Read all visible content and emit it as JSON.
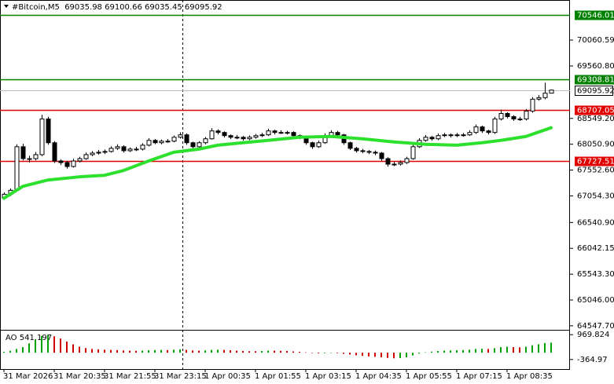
{
  "chart_data": {
    "type": "candlestick",
    "title": "#Bitcoin,M5  69035.98 69100.66 69035.45 69095.92",
    "categories": [
      "31 Mar 2026",
      null,
      null,
      null,
      null,
      null,
      null,
      null,
      "31 Mar 20:35",
      null,
      null,
      null,
      null,
      null,
      null,
      null,
      "31 Mar 21:55",
      null,
      null,
      null,
      null,
      null,
      null,
      null,
      "31 Mar 23:15",
      null,
      null,
      null,
      null,
      null,
      null,
      null,
      "1 Apr 00:35",
      null,
      null,
      null,
      null,
      null,
      null,
      null,
      "1 Apr 01:55",
      null,
      null,
      null,
      null,
      null,
      null,
      null,
      "1 Apr 03:15",
      null,
      null,
      null,
      null,
      null,
      null,
      null,
      "1 Apr 04:35",
      null,
      null,
      null,
      null,
      null,
      null,
      null,
      "1 Apr 05:55",
      null,
      null,
      null,
      null,
      null,
      null,
      null,
      "1 Apr 07:15",
      null,
      null,
      null,
      null,
      null,
      null,
      null,
      "1 Apr 08:35",
      null,
      null,
      null,
      null,
      null,
      null,
      null
    ],
    "candles": [
      [
        67009,
        67120,
        66980,
        67086
      ],
      [
        67086,
        67200,
        67050,
        67162
      ],
      [
        67162,
        68050,
        67140,
        68003
      ],
      [
        68003,
        68060,
        67740,
        67773
      ],
      [
        67773,
        67830,
        67700,
        67773
      ],
      [
        67773,
        67900,
        67740,
        67850
      ],
      [
        67850,
        68620,
        67820,
        68538
      ],
      [
        68538,
        68580,
        68040,
        68080
      ],
      [
        68080,
        68110,
        67690,
        67728
      ],
      [
        67728,
        67760,
        67650,
        67697
      ],
      [
        67697,
        67730,
        67580,
        67621
      ],
      [
        67621,
        67770,
        67600,
        67728
      ],
      [
        67728,
        67810,
        67700,
        67773
      ],
      [
        67773,
        67890,
        67750,
        67850
      ],
      [
        67850,
        67920,
        67820,
        67880
      ],
      [
        67880,
        67940,
        67850,
        67896
      ],
      [
        67896,
        67950,
        67860,
        67911
      ],
      [
        67911,
        68010,
        67890,
        67972
      ],
      [
        67972,
        68050,
        67940,
        68003
      ],
      [
        68003,
        68030,
        67890,
        67926
      ],
      [
        67926,
        67990,
        67900,
        67957
      ],
      [
        67957,
        68000,
        67920,
        67957
      ],
      [
        67957,
        68070,
        67930,
        68033
      ],
      [
        68033,
        68170,
        68010,
        68125
      ],
      [
        68125,
        68150,
        68050,
        68080
      ],
      [
        68080,
        68140,
        68050,
        68110
      ],
      [
        68110,
        68150,
        68080,
        68110
      ],
      [
        68110,
        68220,
        68090,
        68186
      ],
      [
        68186,
        68280,
        68160,
        68232
      ],
      [
        68232,
        68260,
        68040,
        68080
      ],
      [
        68080,
        68100,
        67970,
        68003
      ],
      [
        68003,
        68110,
        67980,
        68080
      ],
      [
        68080,
        68190,
        68050,
        68156
      ],
      [
        68156,
        68360,
        68140,
        68308
      ],
      [
        68308,
        68340,
        68240,
        68278
      ],
      [
        68278,
        68300,
        68180,
        68217
      ],
      [
        68217,
        68240,
        68150,
        68186
      ],
      [
        68186,
        68230,
        68150,
        68186
      ],
      [
        68186,
        68210,
        68120,
        68156
      ],
      [
        68156,
        68220,
        68130,
        68186
      ],
      [
        68186,
        68250,
        68160,
        68217
      ],
      [
        68217,
        68270,
        68190,
        68232
      ],
      [
        68232,
        68350,
        68210,
        68308
      ],
      [
        68308,
        68330,
        68240,
        68278
      ],
      [
        68278,
        68320,
        68250,
        68278
      ],
      [
        68278,
        68310,
        68240,
        68278
      ],
      [
        68278,
        68300,
        68190,
        68217
      ],
      [
        68217,
        68240,
        68150,
        68186
      ],
      [
        68186,
        68210,
        68040,
        68080
      ],
      [
        68080,
        68100,
        67960,
        68003
      ],
      [
        68003,
        68120,
        67980,
        68080
      ],
      [
        68080,
        68260,
        68060,
        68217
      ],
      [
        68217,
        68320,
        68190,
        68278
      ],
      [
        68278,
        68310,
        68200,
        68232
      ],
      [
        68232,
        68250,
        68040,
        68080
      ],
      [
        68080,
        68100,
        67940,
        67972
      ],
      [
        67972,
        68000,
        67890,
        67926
      ],
      [
        67926,
        67960,
        67880,
        67911
      ],
      [
        67911,
        67940,
        67860,
        67896
      ],
      [
        67896,
        67930,
        67840,
        67880
      ],
      [
        67880,
        67900,
        67730,
        67773
      ],
      [
        67773,
        67800,
        67620,
        67667
      ],
      [
        67667,
        67710,
        67630,
        67667
      ],
      [
        67667,
        67740,
        67640,
        67697
      ],
      [
        67697,
        67810,
        67670,
        67773
      ],
      [
        67773,
        68050,
        67750,
        68003
      ],
      [
        68003,
        68170,
        67980,
        68125
      ],
      [
        68125,
        68230,
        68100,
        68186
      ],
      [
        68186,
        68210,
        68120,
        68156
      ],
      [
        68156,
        68260,
        68130,
        68217
      ],
      [
        68217,
        68270,
        68190,
        68232
      ],
      [
        68232,
        68260,
        68180,
        68217
      ],
      [
        68217,
        68270,
        68190,
        68232
      ],
      [
        68232,
        68270,
        68200,
        68232
      ],
      [
        68232,
        68320,
        68210,
        68278
      ],
      [
        68278,
        68430,
        68250,
        68385
      ],
      [
        68385,
        68410,
        68270,
        68308
      ],
      [
        68308,
        68330,
        68240,
        68278
      ],
      [
        68278,
        68580,
        68250,
        68538
      ],
      [
        68538,
        68720,
        68510,
        68645
      ],
      [
        68645,
        68670,
        68550,
        68584
      ],
      [
        68584,
        68610,
        68500,
        68538
      ],
      [
        68538,
        68580,
        68500,
        68538
      ],
      [
        68538,
        68730,
        68510,
        68691
      ],
      [
        68691,
        68960,
        68660,
        68920
      ],
      [
        68920,
        69000,
        68890,
        68950
      ],
      [
        68950,
        69240,
        68920,
        69035.98
      ],
      [
        69035.98,
        69100.66,
        69035.45,
        69095.92
      ]
    ],
    "up_color": "#ffffff",
    "down_color": "#000000",
    "outline_color": "#000000",
    "ylim": [
      64470,
      70834
    ],
    "yticks": [
      70060.59,
      {
        "value": 69560.8,
        "label": "69560.80"
      },
      {
        "value": 68549.2,
        "label": "68549.20"
      },
      {
        "value": 68050.9,
        "label": "68050.90"
      },
      {
        "value": 67552.6,
        "label": "67552.60"
      },
      {
        "value": 67054.3,
        "label": "67054.30"
      },
      {
        "value": 66540.9,
        "label": "66540.90"
      },
      66042.15,
      {
        "value": 65543.3,
        "label": "65543.30"
      },
      {
        "value": 65046,
        "label": "65046.00"
      },
      {
        "value": 64547.7,
        "label": "64547.70"
      }
    ],
    "levels": [
      {
        "value": 70546.01,
        "color": "#008000"
      },
      {
        "value": 69308.81,
        "color": "#008000"
      },
      {
        "value": 68707.05,
        "color": "#e00000"
      },
      {
        "value": 67727.51,
        "color": "#e00000"
      }
    ],
    "current": {
      "value": 69095.92,
      "color": "#c0c0c0"
    },
    "ma": {
      "color": "#2ee02e",
      "x": [
        0,
        3,
        7,
        12,
        16,
        19,
        23,
        27,
        31,
        34,
        38,
        42,
        47,
        52,
        57,
        62,
        67,
        72,
        76,
        79,
        83,
        87
      ],
      "values": [
        67009,
        67238,
        67361,
        67422,
        67452,
        67544,
        67728,
        67896,
        67957,
        68033,
        68080,
        68125,
        68186,
        68201,
        68156,
        68095,
        68049,
        68033,
        68080,
        68125,
        68201,
        68369
      ]
    },
    "ao": {
      "title": "AO 541.197",
      "up_color": "#00a000",
      "down_color": "#d00000",
      "ylim": [
        -882,
        1190
      ],
      "yticks": [
        969.824,
        -364.97
      ],
      "values": [
        50,
        100,
        200,
        300,
        500,
        700,
        900,
        950,
        880,
        760,
        600,
        450,
        320,
        250,
        200,
        180,
        160,
        150,
        140,
        120,
        110,
        100,
        110,
        130,
        140,
        150,
        140,
        160,
        180,
        150,
        120,
        110,
        120,
        150,
        160,
        150,
        130,
        110,
        90,
        80,
        80,
        90,
        110,
        110,
        100,
        90,
        70,
        50,
        20,
        -20,
        -40,
        -30,
        -20,
        -30,
        -60,
        -100,
        -140,
        -170,
        -200,
        -220,
        -250,
        -280,
        -300,
        -290,
        -250,
        -150,
        -50,
        20,
        60,
        90,
        110,
        120,
        130,
        140,
        160,
        200,
        210,
        200,
        240,
        300,
        320,
        300,
        290,
        320,
        400,
        450,
        520,
        541.197
      ]
    }
  }
}
